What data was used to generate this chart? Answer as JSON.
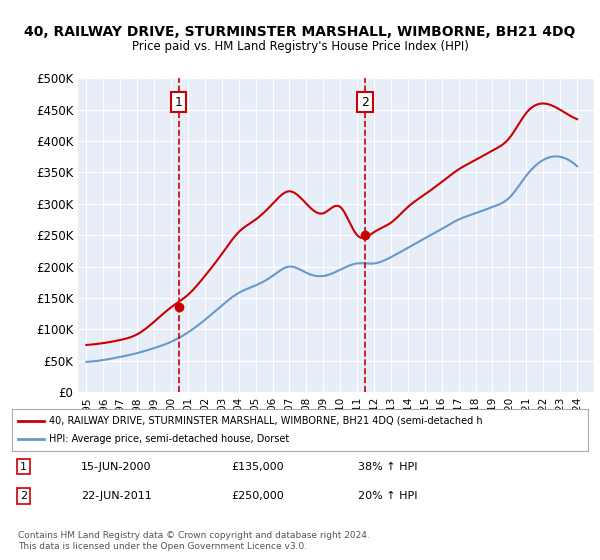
{
  "title": "40, RAILWAY DRIVE, STURMINSTER MARSHALL, WIMBORNE, BH21 4DQ",
  "subtitle": "Price paid vs. HM Land Registry's House Price Index (HPI)",
  "bg_color": "#e8eef8",
  "plot_bg_color": "#e8eef8",
  "red_line_color": "#cc0000",
  "blue_line_color": "#6699cc",
  "dashed_line_color": "#cc0000",
  "marker_color": "#cc0000",
  "ylim": [
    0,
    500000
  ],
  "ytick_labels": [
    "£0",
    "£50K",
    "£100K",
    "£150K",
    "£200K",
    "£250K",
    "£300K",
    "£350K",
    "£400K",
    "£450K",
    "£500K"
  ],
  "ytick_values": [
    0,
    50000,
    100000,
    150000,
    200000,
    250000,
    300000,
    350000,
    400000,
    450000,
    500000
  ],
  "purchase1_date": 2000.45,
  "purchase1_price": 135000,
  "purchase1_label": "1",
  "purchase2_date": 2011.47,
  "purchase2_price": 250000,
  "purchase2_label": "2",
  "legend_line1": "40, RAILWAY DRIVE, STURMINSTER MARSHALL, WIMBORNE, BH21 4DQ (semi-detached h",
  "legend_line2": "HPI: Average price, semi-detached house, Dorset",
  "table_row1": [
    "1",
    "15-JUN-2000",
    "£135,000",
    "38% ↑ HPI"
  ],
  "table_row2": [
    "2",
    "22-JUN-2011",
    "£250,000",
    "20% ↑ HPI"
  ],
  "footer1": "Contains HM Land Registry data © Crown copyright and database right 2024.",
  "footer2": "This data is licensed under the Open Government Licence v3.0.",
  "xmin": 1994.5,
  "xmax": 2025.0
}
